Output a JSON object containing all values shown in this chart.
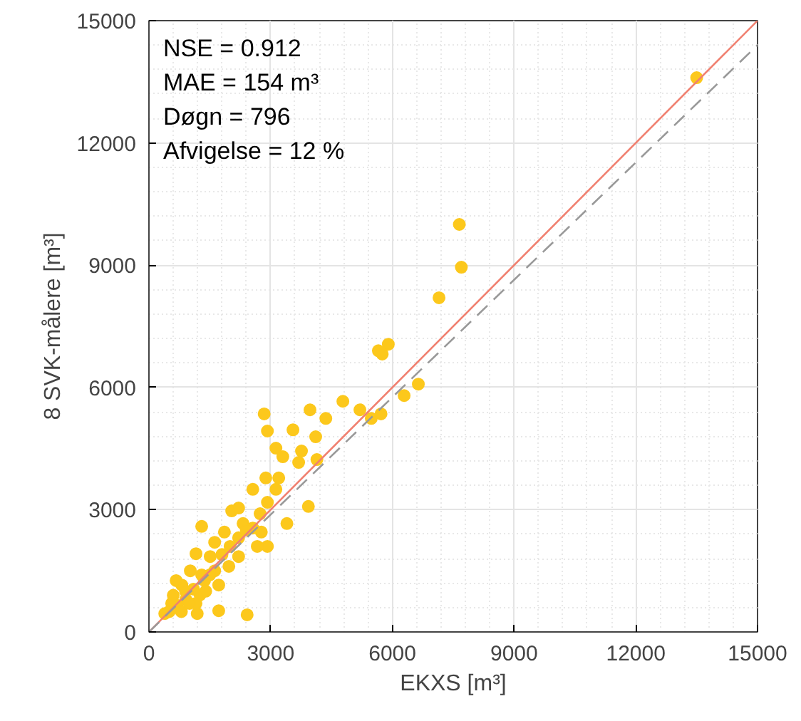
{
  "chart_data": {
    "type": "scatter",
    "xlabel": "EKXS [m³]",
    "ylabel": "8 SVK-målere [m³]",
    "annotations": [
      "NSE = 0.912",
      "MAE = 154 m³",
      "Døgn = 796",
      "Afvigelse = 12 %"
    ],
    "xlim": [
      0,
      15000
    ],
    "ylim": [
      0,
      15000
    ],
    "xticks": [
      0,
      3000,
      6000,
      9000,
      12000,
      15000
    ],
    "yticks": [
      0,
      3000,
      6000,
      9000,
      12000,
      15000
    ],
    "grid": true,
    "marker": "circle",
    "series": [
      {
        "color": "#fcc81c",
        "x": [
          13500,
          7650,
          7700,
          7150,
          5655,
          5900,
          5750,
          6290,
          6640,
          5480,
          5720,
          4780,
          5200,
          3970,
          4360,
          2840,
          2920,
          3550,
          4110,
          3130,
          3760,
          3300,
          3690,
          4140,
          2880,
          3200,
          2560,
          3130,
          3930,
          3400,
          2920,
          1300,
          2420,
          1720,
          1190,
          2040,
          2210,
          2920,
          2740,
          2560,
          1860,
          1620,
          1160,
          1020,
          810,
          560,
          2210,
          1620,
          1260,
          390,
          2210,
          2770,
          1970,
          1370,
          910,
          670,
          1510,
          2320,
          2670,
          1160,
          1720,
          500,
          700,
          900,
          1100,
          1300,
          1500,
          1800,
          2000,
          2400,
          600,
          800,
          1000,
          1400
        ],
        "values": [
          13600,
          10000,
          8950,
          8200,
          6900,
          7060,
          6820,
          5800,
          6080,
          5240,
          5350,
          5660,
          5450,
          5450,
          5240,
          5350,
          4930,
          4960,
          4790,
          4510,
          4440,
          4300,
          4160,
          4230,
          3780,
          3780,
          3500,
          3500,
          3080,
          2660,
          2100,
          2590,
          420,
          520,
          450,
          2970,
          3040,
          3180,
          2900,
          2550,
          2450,
          2200,
          1920,
          1500,
          1150,
          700,
          1850,
          1500,
          910,
          450,
          2310,
          2450,
          1610,
          1260,
          800,
          1260,
          1850,
          2660,
          2100,
          700,
          1150,
          500,
          650,
          1000,
          1050,
          1400,
          1400,
          1900,
          2100,
          2500,
          900,
          500,
          700,
          1000
        ]
      },
      {
        "type": "line",
        "color": "#f08070",
        "line_style": "solid",
        "marker": "none",
        "x": [
          0,
          15000
        ],
        "values": [
          0,
          15000
        ]
      },
      {
        "type": "line",
        "color": "#999999",
        "line_style": "dashed",
        "marker": "none",
        "x": [
          0,
          15000
        ],
        "values": [
          0,
          14400
        ]
      }
    ]
  }
}
